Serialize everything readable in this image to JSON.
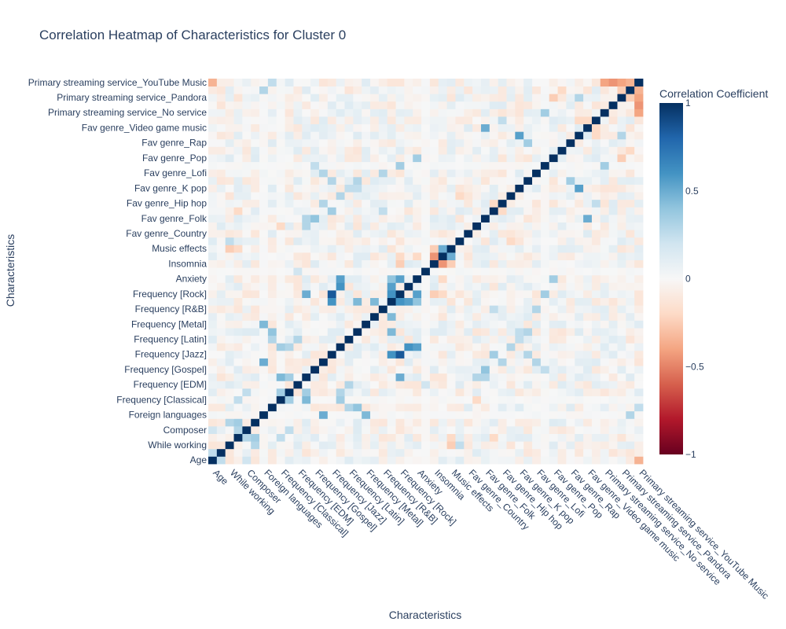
{
  "chart_data": {
    "type": "heatmap",
    "title": "Correlation Heatmap of Characteristics for Cluster 0",
    "xlabel": "Characteristics",
    "ylabel": "Characteristics",
    "colorbar": {
      "title": "Correlation Coefficient",
      "range": [
        -1,
        1
      ],
      "ticks": [
        1,
        0.5,
        0,
        -0.5,
        -1
      ],
      "tick_labels": [
        "1",
        "0.5",
        "0",
        "−0.5",
        "−1"
      ]
    },
    "x_tick_labels": [
      "Age",
      "While working",
      "Composer",
      "Foreign languages",
      "Frequency [Classical]",
      "Frequency [EDM]",
      "Frequency [Gospel]",
      "Frequency [Jazz]",
      "Frequency [Latin]",
      "Frequency [Metal]",
      "Frequency [R&B]",
      "Frequency [Rock]",
      "Anxiety",
      "Insomnia",
      "Music effects",
      "Fav genre_Country",
      "Fav genre_Folk",
      "Fav genre_Hip hop",
      "Fav genre_K pop",
      "Fav genre_Lofi",
      "Fav genre_Pop",
      "Fav genre_Rap",
      "Fav genre_Video game music",
      "Primary streaming service_No service",
      "Primary streaming service_Pandora",
      "Primary streaming service_YouTube Music"
    ],
    "y_tick_labels": [
      "Age",
      "While working",
      "Composer",
      "Foreign languages",
      "Frequency [Classical]",
      "Frequency [EDM]",
      "Frequency [Gospel]",
      "Frequency [Jazz]",
      "Frequency [Latin]",
      "Frequency [Metal]",
      "Frequency [R&B]",
      "Frequency [Rock]",
      "Anxiety",
      "Insomnia",
      "Music effects",
      "Fav genre_Country",
      "Fav genre_Folk",
      "Fav genre_Hip hop",
      "Fav genre_K pop",
      "Fav genre_Lofi",
      "Fav genre_Pop",
      "Fav genre_Rap",
      "Fav genre_Video game music",
      "Primary streaming service_No service",
      "Primary streaming service_Pandora",
      "Primary streaming service_YouTube Music"
    ],
    "tick_every": 2,
    "n_variables": 51,
    "diagonal_value": 1,
    "notable_correlations": [
      {
        "i": 14,
        "j": 22,
        "value": 0.85
      },
      {
        "i": 14,
        "j": 21,
        "value": 0.6
      },
      {
        "i": 15,
        "j": 23,
        "value": 0.6
      },
      {
        "i": 15,
        "j": 24,
        "value": 0.55
      },
      {
        "i": 22,
        "j": 21,
        "value": 0.6
      },
      {
        "i": 19,
        "j": 21,
        "value": 0.45
      },
      {
        "i": 17,
        "j": 21,
        "value": 0.45
      },
      {
        "i": 11,
        "j": 8,
        "value": 0.45
      },
      {
        "i": 11,
        "j": 9,
        "value": 0.35
      },
      {
        "i": 9,
        "j": 8,
        "value": 0.35
      },
      {
        "i": 13,
        "j": 6,
        "value": 0.5
      },
      {
        "i": 11,
        "j": 22,
        "value": 0.5
      },
      {
        "i": 21,
        "j": 23,
        "value": 0.55
      },
      {
        "i": 22,
        "j": 24,
        "value": 0.55
      },
      {
        "i": 21,
        "j": 24,
        "value": 0.4
      },
      {
        "i": 8,
        "j": 15,
        "value": 0.35
      },
      {
        "i": 9,
        "j": 15,
        "value": 0.3
      },
      {
        "i": 10,
        "j": 16,
        "value": 0.3
      },
      {
        "i": 7,
        "j": 16,
        "value": 0.3
      },
      {
        "i": 6,
        "j": 18,
        "value": 0.45
      },
      {
        "i": 7,
        "j": 17,
        "value": 0.4
      },
      {
        "i": 12,
        "j": 32,
        "value": 0.4
      },
      {
        "i": 14,
        "j": 33,
        "value": 0.35
      },
      {
        "i": 13,
        "j": 34,
        "value": 0.3
      },
      {
        "i": 15,
        "j": 35,
        "value": 0.3
      },
      {
        "i": 16,
        "j": 36,
        "value": 0.25
      },
      {
        "i": 17,
        "j": 37,
        "value": 0.3
      },
      {
        "i": 20,
        "j": 38,
        "value": 0.3
      },
      {
        "i": 22,
        "j": 39,
        "value": 0.35
      },
      {
        "i": 24,
        "j": 40,
        "value": 0.35
      },
      {
        "i": 27,
        "j": 28,
        "value": 0.5
      },
      {
        "i": 26,
        "j": 27,
        "value": -0.45
      },
      {
        "i": 26,
        "j": 28,
        "value": -0.25
      },
      {
        "i": 28,
        "j": 2,
        "value": -0.25
      },
      {
        "i": 26,
        "j": 22,
        "value": -0.25
      },
      {
        "i": 27,
        "j": 22,
        "value": -0.2
      },
      {
        "i": 27,
        "j": 24,
        "value": -0.2
      },
      {
        "i": 29,
        "j": 2,
        "value": 0.25
      },
      {
        "i": 31,
        "j": 11,
        "value": 0.3
      },
      {
        "i": 32,
        "j": 11,
        "value": 0.3
      },
      {
        "i": 36,
        "j": 17,
        "value": 0.25
      },
      {
        "i": 37,
        "j": 14,
        "value": 0.3
      },
      {
        "i": 38,
        "j": 13,
        "value": 0.3
      },
      {
        "i": 39,
        "j": 12,
        "value": 0.25
      },
      {
        "i": 43,
        "j": 36,
        "value": 0.55
      },
      {
        "i": 44,
        "j": 32,
        "value": 0.5
      },
      {
        "i": 46,
        "j": 39,
        "value": 0.35
      },
      {
        "i": 48,
        "j": 43,
        "value": 0.3
      },
      {
        "i": 42,
        "j": 37,
        "value": 0.35
      },
      {
        "i": 45,
        "j": 34,
        "value": 0.25
      },
      {
        "i": 48,
        "j": 49,
        "value": -0.25
      },
      {
        "i": 48,
        "j": 50,
        "value": -0.4
      },
      {
        "i": 49,
        "j": 50,
        "value": -0.35
      },
      {
        "i": 47,
        "j": 50,
        "value": -0.45
      },
      {
        "i": 46,
        "j": 50,
        "value": -0.4
      },
      {
        "i": 50,
        "j": 0,
        "value": -0.35
      },
      {
        "i": 49,
        "j": 6,
        "value": 0.3
      },
      {
        "i": 50,
        "j": 7,
        "value": 0.25
      },
      {
        "i": 3,
        "j": 4,
        "value": 0.3
      },
      {
        "i": 3,
        "j": 5,
        "value": 0.35
      },
      {
        "i": 2,
        "j": 5,
        "value": 0.3
      },
      {
        "i": 1,
        "j": 0,
        "value": 0.25
      },
      {
        "i": 4,
        "j": 0,
        "value": 0.2
      },
      {
        "i": 8,
        "j": 3,
        "value": 0.25
      },
      {
        "i": 9,
        "j": 4,
        "value": 0.25
      },
      {
        "i": 25,
        "j": 10,
        "value": 0.2
      },
      {
        "i": 33,
        "j": 20,
        "value": 0.25
      },
      {
        "i": 33,
        "j": 3,
        "value": -0.2
      },
      {
        "i": 35,
        "j": 29,
        "value": -0.2
      },
      {
        "i": 34,
        "j": 33,
        "value": -0.2
      },
      {
        "i": 31,
        "j": 8,
        "value": -0.2
      },
      {
        "i": 28,
        "j": 3,
        "value": -0.2
      },
      {
        "i": 43,
        "j": 45,
        "value": -0.2
      },
      {
        "i": 44,
        "j": 45,
        "value": -0.2
      },
      {
        "i": 41,
        "j": 49,
        "value": -0.2
      },
      {
        "i": 40,
        "j": 48,
        "value": -0.25
      }
    ]
  }
}
